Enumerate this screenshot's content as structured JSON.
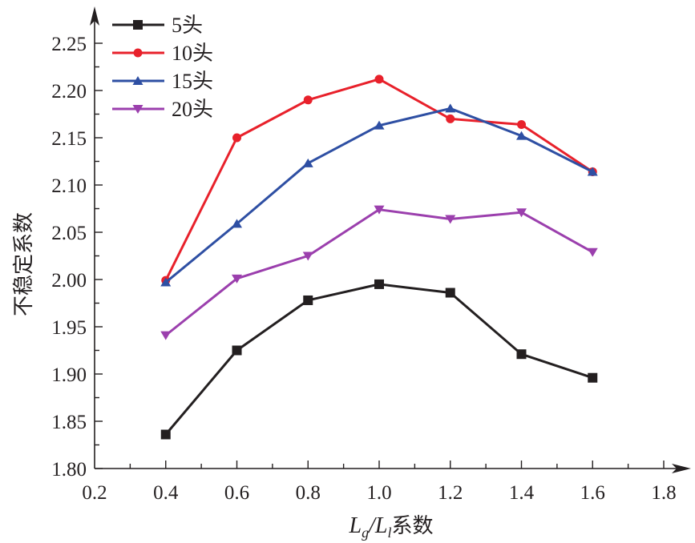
{
  "chart_data": {
    "type": "line",
    "title": "",
    "xlabel_parts": [
      "L",
      "g",
      "/",
      "L",
      "l",
      "系数"
    ],
    "xlabel": "Lg/Ll系数",
    "ylabel": "不稳定系数",
    "xlim": [
      0.2,
      1.8
    ],
    "ylim": [
      1.8,
      2.25
    ],
    "x_ticks": [
      "0.2",
      "0.4",
      "0.6",
      "0.8",
      "1.0",
      "1.2",
      "1.4",
      "1.6",
      "1.8"
    ],
    "y_ticks": [
      "1.80",
      "1.85",
      "1.90",
      "1.95",
      "2.00",
      "2.05",
      "2.10",
      "2.15",
      "2.20",
      "2.25"
    ],
    "x_minor_step": 0.1,
    "y_minor_step": 0.025,
    "grid": false,
    "legend_position": "top-left",
    "x": [
      0.4,
      0.6,
      0.8,
      1.0,
      1.2,
      1.4,
      1.6
    ],
    "series": [
      {
        "name": "5头",
        "color": "#231f20",
        "marker": "square",
        "values": [
          1.836,
          1.925,
          1.978,
          1.995,
          1.986,
          1.921,
          1.896
        ]
      },
      {
        "name": "10头",
        "color": "#e8212b",
        "marker": "circle",
        "values": [
          1.999,
          2.15,
          2.19,
          2.212,
          2.17,
          2.164,
          2.114
        ]
      },
      {
        "name": "15头",
        "color": "#2e4fa3",
        "marker": "triangle-up",
        "values": [
          1.997,
          2.059,
          2.123,
          2.163,
          2.181,
          2.152,
          2.114
        ]
      },
      {
        "name": "20头",
        "color": "#9b3fad",
        "marker": "triangle-down",
        "values": [
          1.941,
          2.001,
          2.025,
          2.074,
          2.064,
          2.071,
          2.029
        ]
      }
    ]
  }
}
